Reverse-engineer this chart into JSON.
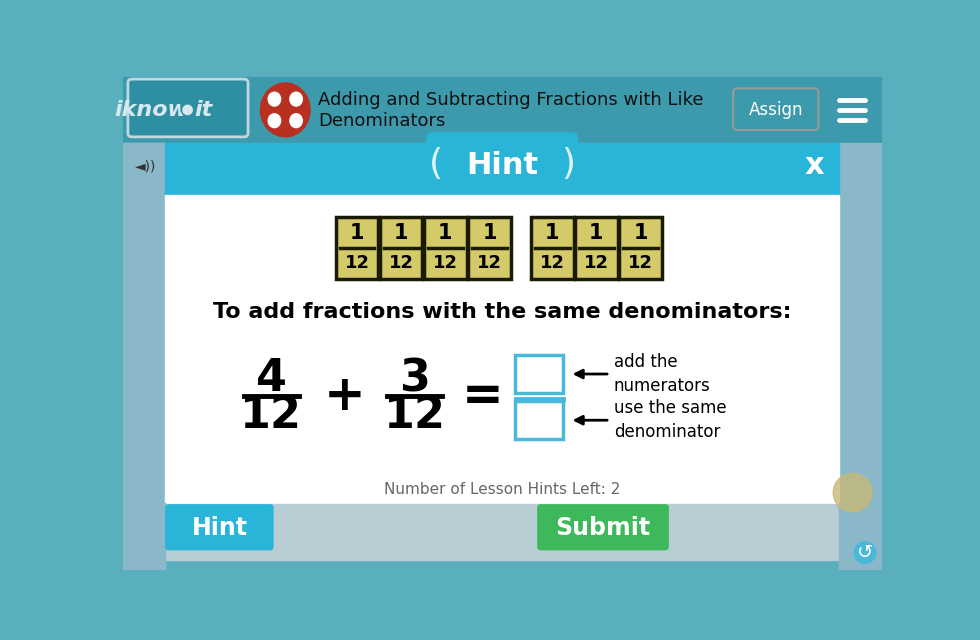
{
  "bg_color": "#5aafbf",
  "nav_bar_color": "#3d9aad",
  "modal_bg": "#ffffff",
  "header_color": "#29b5d8",
  "title_line1": "Adding and Subtracting Fractions with Like",
  "title_line2": "Denominators",
  "hint_text": "Hint",
  "close_x": "x",
  "instruction_text": "To add fractions with the same denominators:",
  "hint_footer": "Number of Lesson Hints Left: 2",
  "fraction_tile_color": "#d4ca6a",
  "fraction_tile_border": "#1a1a00",
  "group1_count": 4,
  "group2_count": 3,
  "fraction_num": "1",
  "fraction_den": "12",
  "lhs_num1": "4",
  "lhs_den1": "12",
  "lhs_num2": "3",
  "lhs_den2": "12",
  "box_border_color": "#4ab8d8",
  "label1": "add the\nnumerators",
  "label2": "use the same\ndenominator",
  "hint_btn_color": "#29b5d8",
  "submit_btn_color": "#3db85a",
  "bottom_bar_color": "#b8cdd4",
  "iknowit_text_color": "#e0e0e0",
  "iknowit_box_color": "#2e8fa3",
  "sidebar_color": "#4a9aaa"
}
